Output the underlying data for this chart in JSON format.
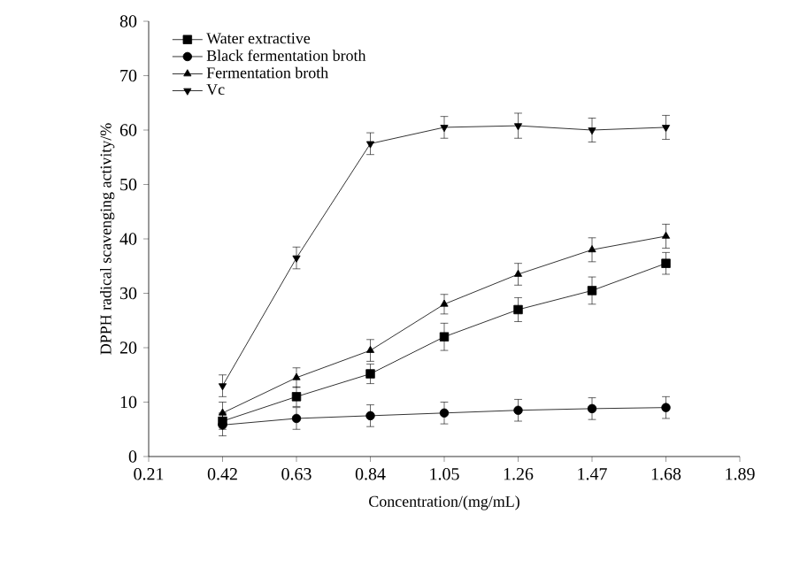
{
  "chart_data": {
    "type": "line",
    "xlabel": "Concentration/(mg/mL)",
    "ylabel": "DPPH radical scavenging activity/%",
    "x": [
      0.42,
      0.63,
      0.84,
      1.05,
      1.26,
      1.47,
      1.68
    ],
    "xlim": [
      0.21,
      1.89
    ],
    "xticks": [
      0.21,
      0.42,
      0.63,
      0.84,
      1.05,
      1.26,
      1.47,
      1.68,
      1.89
    ],
    "ylim": [
      0,
      80
    ],
    "yticks": [
      0,
      10,
      20,
      30,
      40,
      50,
      60,
      70,
      80
    ],
    "grid": false,
    "legend": "top left",
    "line_style": "solid",
    "series": [
      {
        "name": "Water extractive",
        "color": "#000000",
        "marker": "square",
        "values": [
          6.5,
          11,
          15.2,
          22,
          27,
          30.5,
          35.5
        ],
        "errors": [
          1.5,
          1.8,
          1.8,
          2.5,
          2.2,
          2.5,
          2
        ]
      },
      {
        "name": "Black fermentation broth",
        "color": "#000000",
        "marker": "circle",
        "values": [
          5.8,
          7,
          7.5,
          8,
          8.5,
          8.8,
          9
        ],
        "errors": [
          2,
          2,
          2,
          2,
          2,
          2,
          2
        ]
      },
      {
        "name": "Fermentation broth",
        "color": "#000000",
        "marker": "triangle",
        "values": [
          8,
          14.5,
          19.5,
          28,
          33.5,
          38,
          40.5
        ],
        "errors": [
          2,
          1.8,
          2,
          1.8,
          2,
          2.2,
          2.2
        ]
      },
      {
        "name": "Vc",
        "color": "#000000",
        "marker": "triangle-down",
        "values": [
          13,
          36.5,
          57.5,
          60.5,
          60.8,
          60,
          60.5
        ],
        "errors": [
          2,
          2,
          2,
          2,
          2.3,
          2.2,
          2.2
        ]
      }
    ]
  }
}
